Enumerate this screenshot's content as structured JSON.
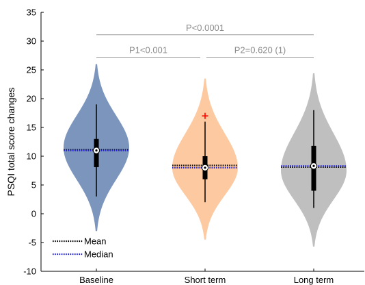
{
  "chart_data": {
    "type": "violin",
    "ylabel": "PSQI total score changes",
    "ylim": [
      -10,
      35
    ],
    "yticks": [
      -10,
      -5,
      0,
      5,
      10,
      15,
      20,
      25,
      30,
      35
    ],
    "yticklabels": [
      "-10",
      "-5",
      "0",
      "5",
      "10",
      "15",
      "20",
      "25",
      "30",
      "35"
    ],
    "categories": [
      "Baseline",
      "Short term",
      "Long term"
    ],
    "groups": [
      {
        "name": "Baseline",
        "color": "#7b95bd",
        "range": [
          -3,
          26
        ],
        "density_peak": 11.5,
        "density_width": 0.5,
        "mean": 11.1,
        "median": 11,
        "q1": 8.1,
        "q3": 13,
        "whisker_low": 3,
        "whisker_high": 19,
        "outliers": []
      },
      {
        "name": "Short term",
        "color": "#fdc9a0",
        "range": [
          -4.5,
          23.5
        ],
        "density_peak": 8,
        "density_width": 0.5,
        "mean": 8.4,
        "median": 8,
        "q1": 6,
        "q3": 10,
        "whisker_low": 2,
        "whisker_high": 16,
        "outliers": [
          17
        ]
      },
      {
        "name": "Long term",
        "color": "#bfbfbf",
        "range": [
          -5.7,
          24.4
        ],
        "density_peak": 7.5,
        "density_width": 0.5,
        "mean": 8.1,
        "median": 8.3,
        "q1": 4,
        "q3": 11.8,
        "whisker_low": 1,
        "whisker_high": 18,
        "outliers": []
      }
    ],
    "comparisons": [
      {
        "from": 0,
        "to": 2,
        "y": 31.1,
        "label": "P<0.0001"
      },
      {
        "from": 0,
        "to": 1,
        "y": 27.2,
        "label": "P1<0.001"
      },
      {
        "from": 1,
        "to": 2,
        "y": 27.2,
        "label": "P2=0.620 (1)"
      }
    ],
    "legend": {
      "position": "bottom-left",
      "items": [
        {
          "label": "Mean",
          "style": "dotted",
          "color": "#000000"
        },
        {
          "label": "Median",
          "style": "dotted",
          "color": "#1f1fd6"
        }
      ]
    },
    "colors": {
      "box": "#000000",
      "outlier": "#ff0000",
      "mean_line": "#000000",
      "median_line": "#1f1fd6",
      "sig_line": "#999999"
    }
  }
}
